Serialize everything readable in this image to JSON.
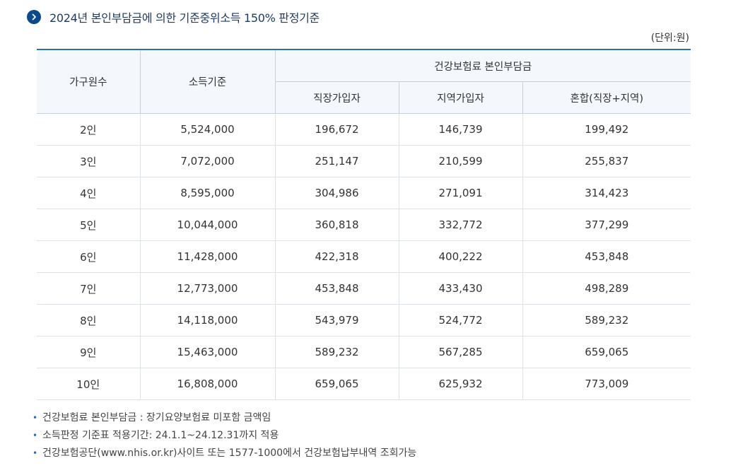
{
  "heading": {
    "title": "2024년 본인부담금에 의한 기준중위소득 150% 판정기준"
  },
  "unit": "(단위:원)",
  "table": {
    "col_household": "가구원수",
    "col_income": "소득기준",
    "col_group": "건강보험료 본인부담금",
    "col_employee": "직장가입자",
    "col_regional": "지역가입자",
    "col_mixed": "혼합(직장+지역)",
    "rows": [
      {
        "household": "2인",
        "income": "5,524,000",
        "employee": "196,672",
        "regional": "146,739",
        "mixed": "199,492"
      },
      {
        "household": "3인",
        "income": "7,072,000",
        "employee": "251,147",
        "regional": "210,599",
        "mixed": "255,837"
      },
      {
        "household": "4인",
        "income": "8,595,000",
        "employee": "304,986",
        "regional": "271,091",
        "mixed": "314,423"
      },
      {
        "household": "5인",
        "income": "10,044,000",
        "employee": "360,818",
        "regional": "332,772",
        "mixed": "377,299"
      },
      {
        "household": "6인",
        "income": "11,428,000",
        "employee": "422,318",
        "regional": "400,222",
        "mixed": "453,848"
      },
      {
        "household": "7인",
        "income": "12,773,000",
        "employee": "453,848",
        "regional": "433,430",
        "mixed": "498,289"
      },
      {
        "household": "8인",
        "income": "14,118,000",
        "employee": "543,979",
        "regional": "524,772",
        "mixed": "589,232"
      },
      {
        "household": "9인",
        "income": "15,463,000",
        "employee": "589,232",
        "regional": "567,285",
        "mixed": "659,065"
      },
      {
        "household": "10인",
        "income": "16,808,000",
        "employee": "659,065",
        "regional": "625,932",
        "mixed": "773,009"
      }
    ]
  },
  "notes": [
    "건강보험료 본인부담금 : 장기요양보험료 미포함 금액임",
    "소득판정 기준표 적용기간: 24.1.1~24.12.31까지 적용",
    "건강보험공단(www.nhis.or.kr)사이트 또는 1577-1000에서 건강보험납부내역 조회가능"
  ],
  "icons": {
    "heading_bullet": "chevron-right-icon"
  },
  "colors": {
    "accent": "#0a4a8c",
    "table_top_border": "#2a6fb6",
    "header_bg": "#f4f7fb"
  }
}
